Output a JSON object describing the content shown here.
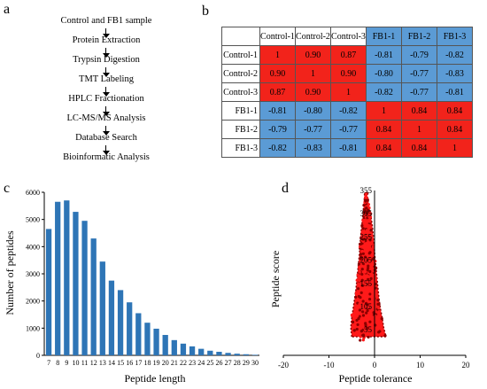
{
  "panels": {
    "a": "a",
    "b": "b",
    "c": "c",
    "d": "d"
  },
  "workflow": {
    "steps": [
      "Control and FB1 sample",
      "Protein Extraction",
      "Trypsin Digestion",
      "TMT Labeling",
      "HPLC Fractionation",
      "LC-MS/MS Analysis",
      "Database Search",
      "Bioinformatic Analysis"
    ]
  },
  "correlation": {
    "columns": [
      "Control-1",
      "Control-2",
      "Control-3",
      "FB1-1",
      "FB1-2",
      "FB1-3"
    ],
    "rows": [
      {
        "label": "Control-1",
        "values": [
          "1",
          "0.90",
          "0.87",
          "-0.81",
          "-0.79",
          "-0.82"
        ]
      },
      {
        "label": "Control-2",
        "values": [
          "0.90",
          "1",
          "0.90",
          "-0.80",
          "-0.77",
          "-0.83"
        ]
      },
      {
        "label": "Control-3",
        "values": [
          "0.87",
          "0.90",
          "1",
          "-0.82",
          "-0.77",
          "-0.81"
        ]
      },
      {
        "label": "FB1-1",
        "values": [
          "-0.81",
          "-0.80",
          "-0.82",
          "1",
          "0.84",
          "0.84"
        ]
      },
      {
        "label": "FB1-2",
        "values": [
          "-0.79",
          "-0.77",
          "-0.77",
          "0.84",
          "1",
          "0.84"
        ]
      },
      {
        "label": "FB1-3",
        "values": [
          "-0.82",
          "-0.83",
          "-0.81",
          "0.84",
          "0.84",
          "1"
        ]
      }
    ],
    "colors": {
      "positive": "#f2231b",
      "negative": "#5b9bd5"
    }
  },
  "chart_data": [
    {
      "type": "bar",
      "xlabel": "Peptide length",
      "ylabel": "Number of peptides",
      "categories": [
        "7",
        "8",
        "9",
        "10",
        "11",
        "12",
        "13",
        "14",
        "15",
        "16",
        "17",
        "18",
        "19",
        "20",
        "21",
        "22",
        "23",
        "24",
        "25",
        "26",
        "27",
        "28",
        "29",
        "30"
      ],
      "values": [
        4650,
        5650,
        5700,
        5280,
        4950,
        4300,
        3450,
        2750,
        2400,
        1950,
        1550,
        1200,
        980,
        750,
        560,
        430,
        330,
        240,
        170,
        130,
        90,
        60,
        40,
        20
      ],
      "ylim": [
        0,
        6000
      ],
      "yticks": [
        0,
        1000,
        2000,
        3000,
        4000,
        5000,
        6000
      ],
      "bar_color": "#2e75b6"
    },
    {
      "type": "scatter",
      "xlabel": "Peptide tolerance",
      "ylabel": "Peptide score",
      "xlim": [
        -20,
        20
      ],
      "ylim": [
        0,
        355
      ],
      "xticks": [
        -20,
        -10,
        0,
        10,
        20
      ],
      "yticks": [
        55,
        105,
        155,
        205,
        255,
        305,
        355
      ],
      "point_color": "#ff1a1a",
      "edge_color": "#8b0000",
      "density_outline": [
        {
          "score": 40,
          "xmin": -5.0,
          "xmax": 2.5
        },
        {
          "score": 60,
          "xmin": -5.2,
          "xmax": 2.0
        },
        {
          "score": 80,
          "xmin": -5.0,
          "xmax": 1.7
        },
        {
          "score": 100,
          "xmin": -4.7,
          "xmax": 1.3
        },
        {
          "score": 120,
          "xmin": -4.4,
          "xmax": 1.0
        },
        {
          "score": 140,
          "xmin": -4.1,
          "xmax": 0.8
        },
        {
          "score": 160,
          "xmin": -3.9,
          "xmax": 0.6
        },
        {
          "score": 180,
          "xmin": -3.7,
          "xmax": 0.4
        },
        {
          "score": 200,
          "xmin": -3.5,
          "xmax": 0.2
        },
        {
          "score": 220,
          "xmin": -3.3,
          "xmax": 0.0
        },
        {
          "score": 240,
          "xmin": -3.2,
          "xmax": -0.1
        },
        {
          "score": 260,
          "xmin": -3.0,
          "xmax": -0.3
        },
        {
          "score": 280,
          "xmin": -2.8,
          "xmax": -0.5
        },
        {
          "score": 300,
          "xmin": -2.6,
          "xmax": -0.8
        },
        {
          "score": 320,
          "xmin": -2.4,
          "xmax": -1.1
        },
        {
          "score": 340,
          "xmin": -2.1,
          "xmax": -1.5
        }
      ]
    }
  ]
}
